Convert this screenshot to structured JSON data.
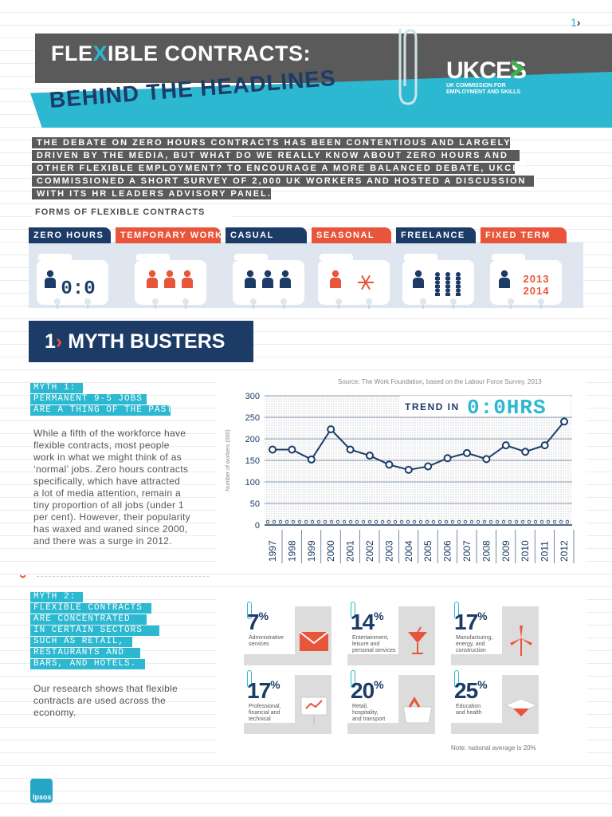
{
  "page": {
    "number": "1",
    "number_chevron": "›"
  },
  "header": {
    "title_part1": "FLE",
    "title_x": "X",
    "title_part2": "IBLE CONTRACTS:",
    "subtitle": "BEHIND THE HEADLINES",
    "logo_text": "UKCES",
    "logo_line1": "UK COMMISSION FOR",
    "logo_line2": "EMPLOYMENT AND SKILLS"
  },
  "intro": {
    "lines": [
      "THE DEBATE ON ZERO HOURS CONTRACTS HAS BEEN CONTENTIOUS AND LARGELY",
      "DRIVEN BY THE MEDIA, BUT WHAT DO WE REALLY KNOW ABOUT ZERO HOURS AND",
      "OTHER FLEXIBLE EMPLOYMENT? TO ENCOURAGE A MORE BALANCED DEBATE, UKCES",
      "COMMISSIONED A SHORT SURVEY OF 2,000 UK WORKERS AND HOSTED A DISCUSSION",
      "WITH ITS HR LEADERS ADVISORY PANEL."
    ]
  },
  "forms": {
    "title": "FORMS OF FLEXIBLE CONTRACTS",
    "items": [
      {
        "label": "ZERO HOURS",
        "color": "#1c3b66",
        "icon": "person-clock-icon",
        "detail": "0:0"
      },
      {
        "label": "TEMPORARY WORK",
        "color": "#e8553a",
        "icon": "people-orange-icon"
      },
      {
        "label": "CASUAL",
        "color": "#1c3b66",
        "icon": "people-navy-icon"
      },
      {
        "label": "SEASONAL",
        "color": "#e8553a",
        "icon": "person-snowflake-icon"
      },
      {
        "label": "FREELANCE",
        "color": "#1c3b66",
        "icon": "person-dots-icon"
      },
      {
        "label": "FIXED TERM",
        "color": "#e8553a",
        "icon": "person-years-icon",
        "years": [
          "2013",
          "2014"
        ]
      }
    ]
  },
  "section": {
    "number": "1",
    "chevron": "›",
    "title": "MYTH BUSTERS"
  },
  "myth1": {
    "tags": [
      "MYTH 1:",
      "PERMANENT 9-5 JOBS",
      "ARE A THING OF THE PAST."
    ],
    "body": [
      "While a fifth of the workforce have",
      "flexible contracts, most people",
      "work in what we might think of as",
      "‘normal’ jobs. Zero hours contracts",
      "specifically, which have attracted",
      "a lot of media attention, remain a",
      "tiny proportion of all jobs (under 1",
      "per cent). However, their popularity",
      "has waxed and waned since 2000,",
      "and there was a surge in 2012."
    ]
  },
  "chart_data": {
    "type": "line",
    "source": "Source: The Work Foundation, based on the Labour Force Survey, 2013",
    "ylabel": "Number of workers (000)",
    "legend_prefix": "TREND IN",
    "legend_display": "0:0HRS",
    "ylim": [
      0,
      300
    ],
    "yticks": [
      0,
      50,
      100,
      150,
      200,
      250,
      300
    ],
    "x": [
      "1997",
      "1998",
      "1999",
      "2000",
      "2001",
      "2002",
      "2003",
      "2004",
      "2005",
      "2006",
      "2007",
      "2008",
      "2009",
      "2010",
      "2011",
      "2012"
    ],
    "values": [
      175,
      175,
      152,
      222,
      175,
      161,
      140,
      128,
      136,
      155,
      167,
      153,
      185,
      170,
      185,
      240
    ],
    "line_color": "#1c3b66",
    "grid": true
  },
  "myth2": {
    "tags": [
      "MYTH 2:",
      "FLEXIBLE CONTRACTS",
      "ARE CONCENTRATED",
      "IN CERTAIN SECTORS",
      "SUCH AS RETAIL,",
      "RESTAURANTS AND",
      "BARS, AND HOTELS."
    ],
    "body": [
      "Our research shows that flexible",
      "contracts are used across the",
      "economy."
    ]
  },
  "sectors": {
    "items": [
      {
        "pct": "7",
        "unit": "%",
        "label": [
          "Administrative",
          "services"
        ],
        "icon": "envelope-icon"
      },
      {
        "pct": "14",
        "unit": "%",
        "label": [
          "Entertainment,",
          "leisure and",
          "personal services"
        ],
        "icon": "cocktail-icon"
      },
      {
        "pct": "17",
        "unit": "%",
        "label": [
          "Manufacturing,",
          "energy, and",
          "construction"
        ],
        "icon": "wind-turbine-icon"
      },
      {
        "pct": "17",
        "unit": "%",
        "label": [
          "Professional,",
          "financial and",
          "technical"
        ],
        "icon": "presentation-board-icon"
      },
      {
        "pct": "20",
        "unit": "%",
        "label": [
          "Retail,",
          "hospitality,",
          "and transport"
        ],
        "icon": "shopping-basket-icon"
      },
      {
        "pct": "25",
        "unit": "%",
        "label": [
          "Education",
          "and health"
        ],
        "icon": "graduation-cap-icon"
      }
    ],
    "note": "Note: national average is 20%"
  },
  "footer": {
    "logo": "Ipsos"
  },
  "colors": {
    "navy": "#1c3b66",
    "cyan": "#2cb8d0",
    "orange": "#e8553a",
    "grey": "#5a5a5a"
  }
}
